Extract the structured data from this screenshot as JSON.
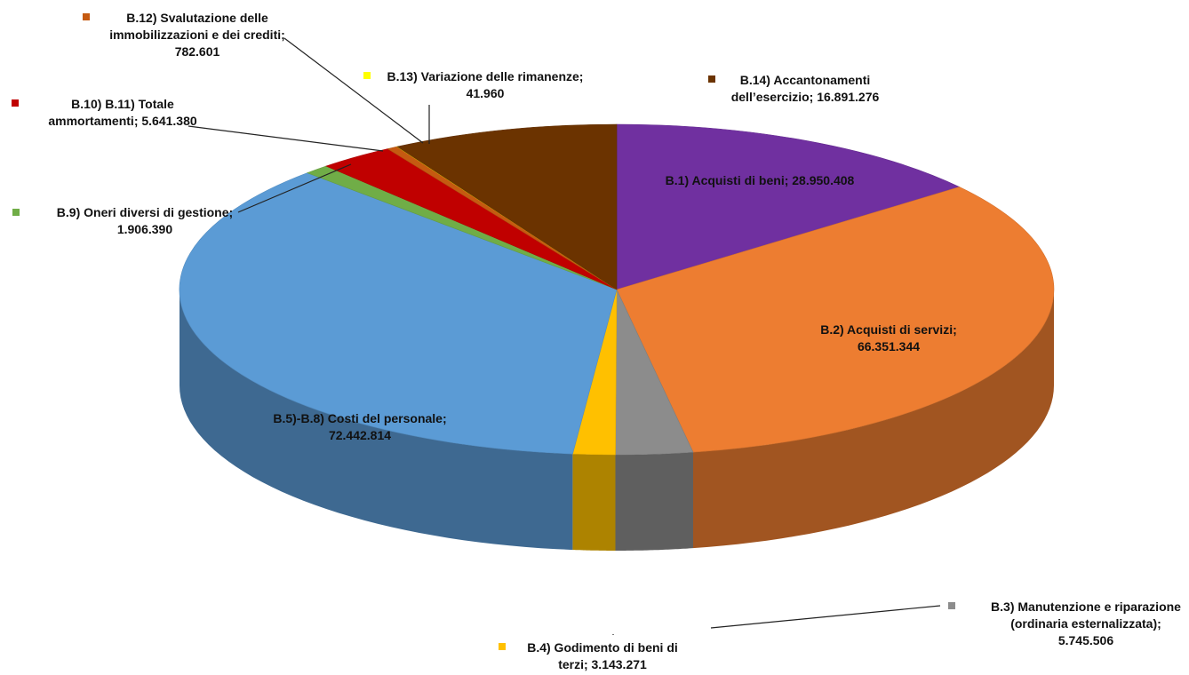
{
  "chart_data": {
    "type": "pie",
    "title": "",
    "legend": "none",
    "slices": [
      {
        "name": "B.1) Acquisti di beni",
        "value": 28950408,
        "display": "28.950.408",
        "color": "#7030A0",
        "label_lines": [
          "B.1) Acquisti di beni; 28.950.408"
        ]
      },
      {
        "name": "B.2) Acquisti di servizi",
        "value": 66351344,
        "display": "66.351.344",
        "color": "#ED7D31",
        "label_lines": [
          "B.2) Acquisti di servizi;",
          "66.351.344"
        ]
      },
      {
        "name": "B.3) Manutenzione e riparazione (ordinaria esternalizzata)",
        "value": 5745506,
        "display": "5.745.506",
        "color": "#8C8C8C",
        "label_lines": [
          "B.3) Manutenzione e riparazione",
          "(ordinaria esternalizzata);",
          "5.745.506"
        ]
      },
      {
        "name": "B.4) Godimento di beni di terzi",
        "value": 3143271,
        "display": "3.143.271",
        "color": "#FFC000",
        "label_lines": [
          "B.4) Godimento di beni di",
          "terzi; 3.143.271"
        ]
      },
      {
        "name": "B.5)-B.8) Costi del personale",
        "value": 72442814,
        "display": "72.442.814",
        "color": "#5B9BD5",
        "label_lines": [
          "B.5)-B.8) Costi del personale;",
          "72.442.814"
        ]
      },
      {
        "name": "B.9) Oneri diversi di gestione",
        "value": 1906390,
        "display": "1.906.390",
        "color": "#70AD47",
        "label_lines": [
          "B.9) Oneri diversi di gestione;",
          "1.906.390"
        ]
      },
      {
        "name": "B.10) B.11) Totale ammortamenti",
        "value": 5641380,
        "display": "5.641.380",
        "color": "#C00000",
        "label_lines": [
          "B.10) B.11) Totale",
          "ammortamenti; 5.641.380"
        ]
      },
      {
        "name": "B.12) Svalutazione delle immobilizzazioni e dei crediti",
        "value": 782601,
        "display": "782.601",
        "color": "#C55A11",
        "label_lines": [
          "B.12) Svalutazione delle",
          "immobilizzazioni e dei crediti;",
          "782.601"
        ]
      },
      {
        "name": "B.13) Variazione delle rimanenze",
        "value": 41960,
        "display": "41.960",
        "color": "#FFFF00",
        "label_lines": [
          "B.13) Variazione delle rimanenze;",
          "41.960"
        ]
      },
      {
        "name": "B.14) Accantonamenti dell'esercizio",
        "value": 16891276,
        "display": "16.891.276",
        "color": "#6B3300",
        "label_lines": [
          "B.14) Accantonamenti",
          "dell’esercizio; 16.891.276"
        ]
      }
    ]
  }
}
